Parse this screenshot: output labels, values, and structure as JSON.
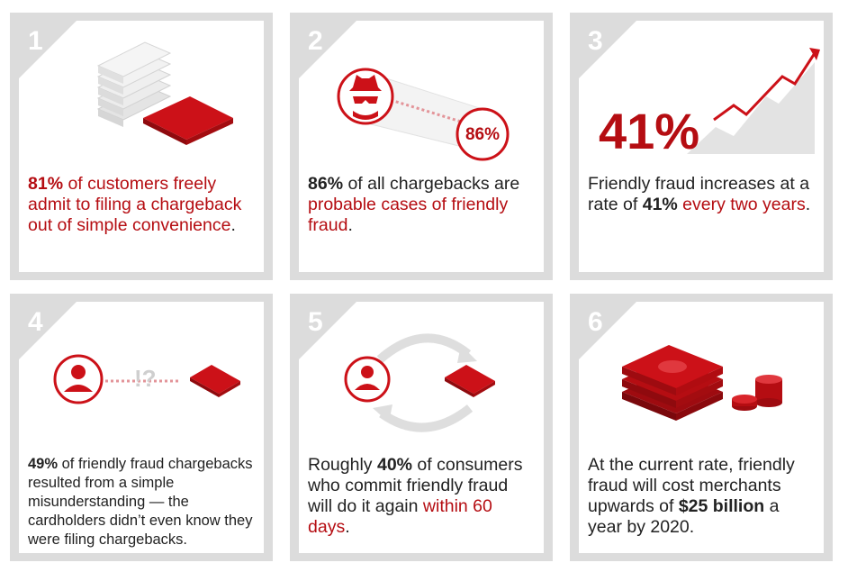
{
  "cards": [
    {
      "number": "1",
      "stat": "81%",
      "text_red": "of customers freely admit to filing a chargeback out of simple convenience",
      "text_end": "."
    },
    {
      "number": "2",
      "badge": "86%",
      "stat": "86%",
      "text_plain": "of all chargebacks are",
      "text_red": "probable cases of friendly fraud",
      "text_end": "."
    },
    {
      "number": "3",
      "big_stat": "41%",
      "text_plain": "Friendly fraud increases at a rate of",
      "stat": "41%",
      "text_red": "every two years",
      "text_end": "."
    },
    {
      "number": "4",
      "mark": "!?",
      "stat": "49%",
      "text_plain": "of friendly fraud chargebacks resulted from a simple misunderstanding — the cardholders didn’t even know they were filing chargebacks."
    },
    {
      "number": "5",
      "text_plain": "Roughly",
      "stat": "40%",
      "text_plain2": "of consumers who commit friendly fraud will do it again",
      "text_red": "within 60 days",
      "text_end": "."
    },
    {
      "number": "6",
      "text_plain": "At the current rate, friendly fraud will cost merchants upwards of",
      "stat": "$25 billion",
      "text_plain2": "a year by 2020."
    }
  ],
  "colors": {
    "accent": "#b50d12",
    "frame": "#dcdcdc",
    "text": "#222222"
  }
}
